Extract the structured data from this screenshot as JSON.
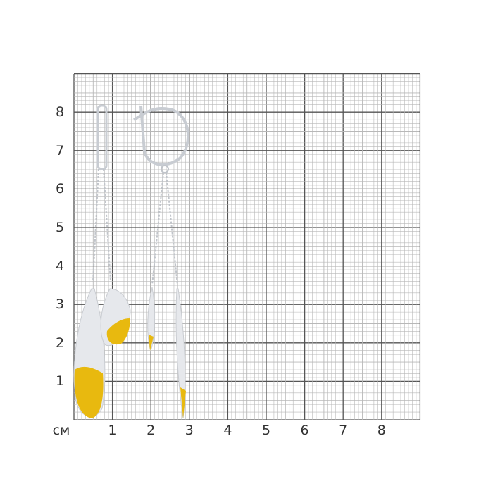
{
  "unit_label": "см",
  "x_ticks": [
    "1",
    "2",
    "3",
    "4",
    "5",
    "6",
    "7",
    "8"
  ],
  "y_ticks": [
    "1",
    "2",
    "3",
    "4",
    "5",
    "6",
    "7",
    "8"
  ],
  "colors": {
    "grid_minor": "#b8b8b8",
    "grid_major": "#555555",
    "silver": "#e4e6ea",
    "gold": "#e8b90f"
  }
}
